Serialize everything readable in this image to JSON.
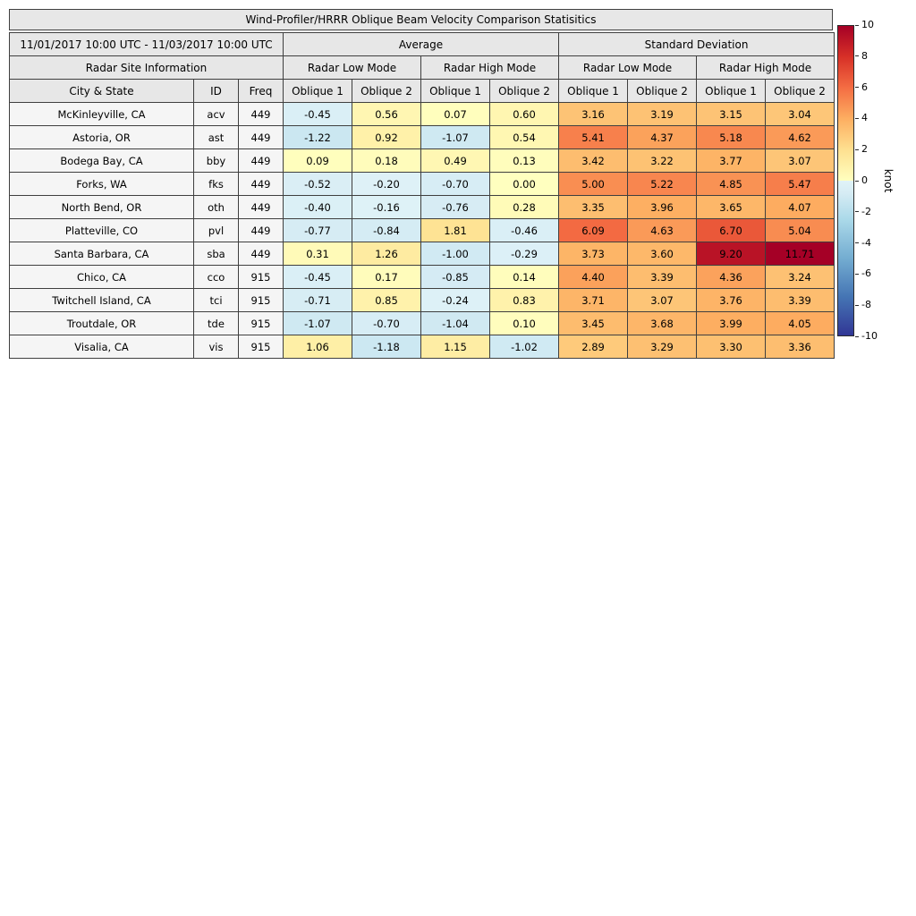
{
  "chart_data": {
    "type": "table",
    "title": "Wind-Profiler/HRRR Oblique Beam Velocity Comparison Statisitics",
    "date_range": "11/01/2017 10:00 UTC - 11/03/2017 10:00 UTC",
    "site_info_header": "Radar Site Information",
    "group_headers": [
      "Average",
      "Standard Deviation"
    ],
    "mode_headers": [
      "Radar Low Mode",
      "Radar High Mode",
      "Radar Low Mode",
      "Radar High Mode"
    ],
    "column_headers": [
      "City & State",
      "ID",
      "Freq",
      "Oblique 1",
      "Oblique 2",
      "Oblique 1",
      "Oblique 2",
      "Oblique 1",
      "Oblique 2",
      "Oblique 1",
      "Oblique 2"
    ],
    "rows": [
      {
        "city": "McKinleyville, CA",
        "id": "acv",
        "freq": 449,
        "values": [
          -0.45,
          0.56,
          0.07,
          0.6,
          3.16,
          3.19,
          3.15,
          3.04
        ]
      },
      {
        "city": "Astoria, OR",
        "id": "ast",
        "freq": 449,
        "values": [
          -1.22,
          0.92,
          -1.07,
          0.54,
          5.41,
          4.37,
          5.18,
          4.62
        ]
      },
      {
        "city": "Bodega Bay, CA",
        "id": "bby",
        "freq": 449,
        "values": [
          0.09,
          0.18,
          0.49,
          0.13,
          3.42,
          3.22,
          3.77,
          3.07
        ]
      },
      {
        "city": "Forks, WA",
        "id": "fks",
        "freq": 449,
        "values": [
          -0.52,
          -0.2,
          -0.7,
          0.0,
          5.0,
          5.22,
          4.85,
          5.47
        ]
      },
      {
        "city": "North Bend, OR",
        "id": "oth",
        "freq": 449,
        "values": [
          -0.4,
          -0.16,
          -0.76,
          0.28,
          3.35,
          3.96,
          3.65,
          4.07
        ]
      },
      {
        "city": "Platteville, CO",
        "id": "pvl",
        "freq": 449,
        "values": [
          -0.77,
          -0.84,
          1.81,
          -0.46,
          6.09,
          4.63,
          6.7,
          5.04
        ]
      },
      {
        "city": "Santa Barbara, CA",
        "id": "sba",
        "freq": 449,
        "values": [
          0.31,
          1.26,
          -1.0,
          -0.29,
          3.73,
          3.6,
          9.2,
          11.71
        ]
      },
      {
        "city": "Chico, CA",
        "id": "cco",
        "freq": 915,
        "values": [
          -0.45,
          0.17,
          -0.85,
          0.14,
          4.4,
          3.39,
          4.36,
          3.24
        ]
      },
      {
        "city": "Twitchell Island, CA",
        "id": "tci",
        "freq": 915,
        "values": [
          -0.71,
          0.85,
          -0.24,
          0.83,
          3.71,
          3.07,
          3.76,
          3.39
        ]
      },
      {
        "city": "Troutdale, OR",
        "id": "tde",
        "freq": 915,
        "values": [
          -1.07,
          -0.7,
          -1.04,
          0.1,
          3.45,
          3.68,
          3.99,
          4.05
        ]
      },
      {
        "city": "Visalia, CA",
        "id": "vis",
        "freq": 915,
        "values": [
          1.06,
          -1.18,
          1.15,
          -1.02,
          2.89,
          3.29,
          3.3,
          3.36
        ]
      }
    ],
    "colorbar": {
      "label": "knot",
      "min": -10,
      "max": 10,
      "ticks": [
        10,
        8,
        6,
        4,
        2,
        0,
        -2,
        -4,
        -6,
        -8,
        -10
      ],
      "colormap": {
        "negative": [
          {
            "v": -10,
            "c": "#313695"
          },
          {
            "v": -7.5,
            "c": "#4575b4"
          },
          {
            "v": -5,
            "c": "#74add1"
          },
          {
            "v": -2.5,
            "c": "#abd9e9"
          },
          {
            "v": -0.8,
            "c": "#d6ecf4"
          },
          {
            "v": 0,
            "c": "#e0f3f8"
          }
        ],
        "positive": [
          {
            "v": 0,
            "c": "#ffffbf"
          },
          {
            "v": 2,
            "c": "#fee090"
          },
          {
            "v": 4,
            "c": "#fdae61"
          },
          {
            "v": 6,
            "c": "#f46d43"
          },
          {
            "v": 8,
            "c": "#d73027"
          },
          {
            "v": 10,
            "c": "#a50026"
          }
        ]
      }
    }
  }
}
